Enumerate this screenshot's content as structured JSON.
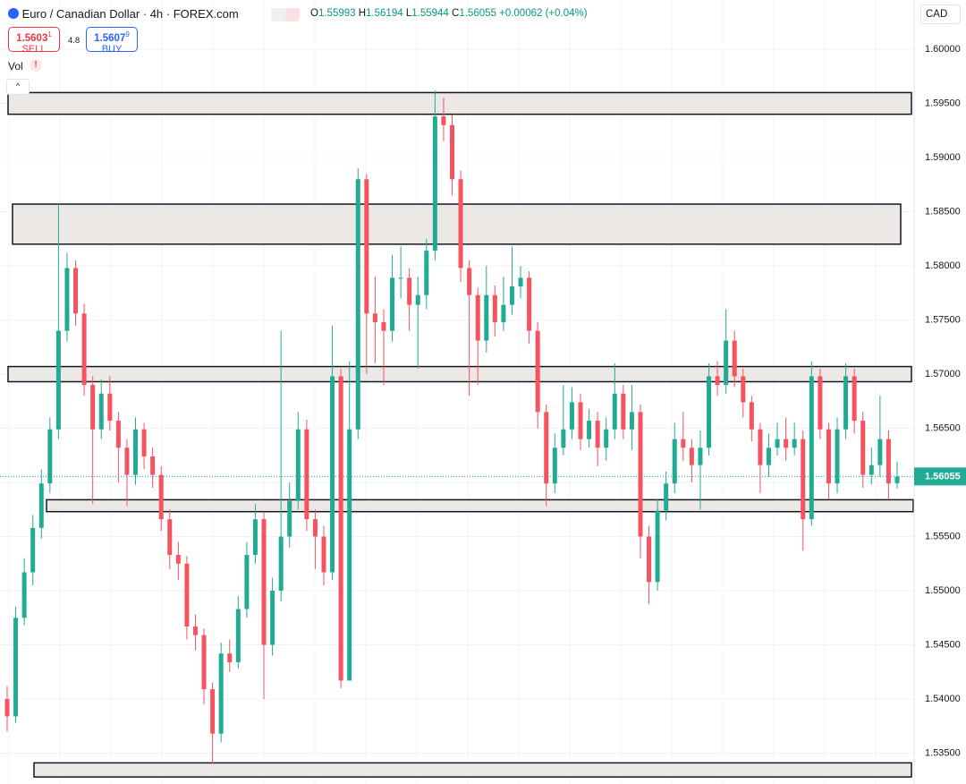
{
  "header": {
    "title": "Euro / Canadian Dollar · 4h · FOREX.com",
    "open_label": "O",
    "open": "1.55993",
    "high_label": "H",
    "high": "1.56194",
    "low_label": "L",
    "low": "1.55944",
    "close_label": "C",
    "close": "1.56055",
    "change": "+0.00062 (+0.04%)",
    "sell_price": "1.5603",
    "sell_sup": "1",
    "sell_label": "SELL",
    "spread": "4.8",
    "buy_price": "1.5607",
    "buy_sup": "9",
    "buy_label": "BUY",
    "volume_label": "Vol",
    "currency": "CAD"
  },
  "chart_data": {
    "type": "candlestick",
    "ylim": [
      1.53215,
      1.60455
    ],
    "yticks": [
      {
        "value": 1.535,
        "label": "1.53500"
      },
      {
        "value": 1.54,
        "label": "1.54000"
      },
      {
        "value": 1.545,
        "label": "1.54500"
      },
      {
        "value": 1.55,
        "label": "1.55000"
      },
      {
        "value": 1.555,
        "label": "1.55500"
      },
      {
        "value": 1.56,
        "label": "1.56000"
      },
      {
        "value": 1.565,
        "label": "1.56500"
      },
      {
        "value": 1.57,
        "label": "1.57000"
      },
      {
        "value": 1.575,
        "label": "1.57500"
      },
      {
        "value": 1.58,
        "label": "1.58000"
      },
      {
        "value": 1.585,
        "label": "1.58500"
      },
      {
        "value": 1.59,
        "label": "1.59000"
      },
      {
        "value": 1.595,
        "label": "1.59500"
      },
      {
        "value": 1.6,
        "label": "1.60000"
      }
    ],
    "grid": true,
    "up_color": "#22ab94",
    "down_color": "#f7525f",
    "zone_color": "#ece8e6",
    "open": [
      1.54,
      1.5384,
      1.5475,
      1.5517,
      1.5558,
      1.5599,
      1.5649,
      1.574,
      1.5798,
      1.5756,
      1.569,
      1.5649,
      1.5682,
      1.5657,
      1.5632,
      1.5607,
      1.5649,
      1.5624,
      1.5607,
      1.5566,
      1.5533,
      1.5525,
      1.5467,
      1.5459,
      1.5409,
      1.5368,
      1.5442,
      1.5434,
      1.5483,
      1.5533,
      1.5566,
      1.545,
      1.55,
      1.555,
      1.5583,
      1.5649,
      1.5566,
      1.555,
      1.5517,
      1.5698,
      1.5417,
      1.5649,
      1.588,
      1.5756,
      1.5748,
      1.574,
      1.5789,
      1.5789,
      1.5764,
      1.5773,
      1.5814,
      1.5938,
      1.593,
      1.588,
      1.5798,
      1.5773,
      1.5731,
      1.5773,
      1.5748,
      1.5764,
      1.5781,
      1.5789,
      1.574,
      1.5665,
      1.5599,
      1.5632,
      1.5649,
      1.5674,
      1.564,
      1.5657,
      1.5632,
      1.5649,
      1.5682,
      1.5649,
      1.5665,
      1.555,
      1.5508,
      1.5574,
      1.5599,
      1.564,
      1.5632,
      1.5616,
      1.5632,
      1.5698,
      1.569,
      1.5731,
      1.5698,
      1.5674,
      1.5649,
      1.5616,
      1.5632,
      1.564,
      1.5632,
      1.564,
      1.5566,
      1.5698,
      1.5649,
      1.5599,
      1.5649,
      1.5698,
      1.5657,
      1.5607,
      1.5616,
      1.564,
      1.55993
    ],
    "high": [
      1.5412,
      1.5485,
      1.553,
      1.557,
      1.5612,
      1.566,
      1.5857,
      1.5812,
      1.5805,
      1.5765,
      1.5698,
      1.5695,
      1.5698,
      1.5665,
      1.564,
      1.566,
      1.5655,
      1.5632,
      1.5615,
      1.5575,
      1.5545,
      1.5532,
      1.5478,
      1.5465,
      1.5415,
      1.5452,
      1.5455,
      1.5495,
      1.5545,
      1.558,
      1.5572,
      1.5512,
      1.574,
      1.56,
      1.5665,
      1.5658,
      1.5575,
      1.556,
      1.5745,
      1.5705,
      1.5712,
      1.589,
      1.5885,
      1.579,
      1.576,
      1.581,
      1.5818,
      1.5798,
      1.579,
      1.5825,
      1.5962,
      1.5955,
      1.594,
      1.5888,
      1.5805,
      1.578,
      1.58,
      1.5782,
      1.579,
      1.5818,
      1.58,
      1.5795,
      1.5748,
      1.5672,
      1.5645,
      1.569,
      1.5688,
      1.5682,
      1.5668,
      1.5665,
      1.566,
      1.571,
      1.569,
      1.569,
      1.5672,
      1.556,
      1.5585,
      1.561,
      1.5655,
      1.5665,
      1.564,
      1.5648,
      1.571,
      1.5712,
      1.576,
      1.574,
      1.5705,
      1.568,
      1.5655,
      1.5645,
      1.5655,
      1.566,
      1.5655,
      1.5648,
      1.5712,
      1.5705,
      1.5655,
      1.566,
      1.571,
      1.5705,
      1.5665,
      1.5632,
      1.568,
      1.5648,
      1.56194
    ],
    "low": [
      1.537,
      1.5378,
      1.5468,
      1.5505,
      1.5548,
      1.559,
      1.564,
      1.573,
      1.5745,
      1.568,
      1.558,
      1.564,
      1.5648,
      1.56,
      1.5578,
      1.5598,
      1.5612,
      1.5595,
      1.5555,
      1.552,
      1.551,
      1.5455,
      1.5445,
      1.5395,
      1.534,
      1.536,
      1.5425,
      1.5428,
      1.5475,
      1.5525,
      1.54,
      1.544,
      1.549,
      1.554,
      1.5575,
      1.5555,
      1.552,
      1.5505,
      1.551,
      1.541,
      1.542,
      1.564,
      1.57,
      1.571,
      1.569,
      1.573,
      1.577,
      1.574,
      1.5705,
      1.576,
      1.5805,
      1.5915,
      1.5865,
      1.5785,
      1.568,
      1.569,
      1.572,
      1.5735,
      1.574,
      1.5755,
      1.577,
      1.5728,
      1.565,
      1.5578,
      1.559,
      1.5625,
      1.564,
      1.563,
      1.5632,
      1.5615,
      1.562,
      1.564,
      1.564,
      1.563,
      1.553,
      1.5488,
      1.55,
      1.5565,
      1.559,
      1.562,
      1.56,
      1.5575,
      1.5625,
      1.568,
      1.5682,
      1.5688,
      1.566,
      1.5638,
      1.559,
      1.5605,
      1.5625,
      1.562,
      1.5625,
      1.5537,
      1.556,
      1.564,
      1.5585,
      1.559,
      1.564,
      1.5645,
      1.5595,
      1.5598,
      1.5605,
      1.5585,
      1.55944
    ],
    "close": [
      1.5384,
      1.5475,
      1.5517,
      1.5558,
      1.5599,
      1.5649,
      1.574,
      1.5798,
      1.5756,
      1.569,
      1.5649,
      1.5682,
      1.5657,
      1.5632,
      1.5607,
      1.5649,
      1.5624,
      1.5607,
      1.5566,
      1.5533,
      1.5525,
      1.5467,
      1.5459,
      1.5409,
      1.5368,
      1.5442,
      1.5434,
      1.5483,
      1.5533,
      1.5566,
      1.545,
      1.55,
      1.555,
      1.5583,
      1.5649,
      1.5566,
      1.555,
      1.5517,
      1.5698,
      1.5417,
      1.5649,
      1.588,
      1.5756,
      1.5748,
      1.574,
      1.5789,
      1.5789,
      1.5764,
      1.5773,
      1.5814,
      1.5938,
      1.593,
      1.588,
      1.5798,
      1.5773,
      1.5731,
      1.5773,
      1.5748,
      1.5764,
      1.5781,
      1.5789,
      1.574,
      1.5665,
      1.5599,
      1.5632,
      1.5649,
      1.5674,
      1.564,
      1.5657,
      1.5632,
      1.5649,
      1.5682,
      1.5649,
      1.5665,
      1.555,
      1.5508,
      1.5574,
      1.5599,
      1.564,
      1.5632,
      1.5616,
      1.5632,
      1.5698,
      1.569,
      1.5731,
      1.5698,
      1.5674,
      1.5649,
      1.5616,
      1.5632,
      1.564,
      1.5632,
      1.564,
      1.5566,
      1.5698,
      1.5649,
      1.5599,
      1.5649,
      1.5698,
      1.5657,
      1.5607,
      1.5616,
      1.564,
      1.5599,
      1.56055
    ],
    "zones": [
      {
        "high": 1.596,
        "low": 1.594
      },
      {
        "high": 1.5857,
        "low": 1.582
      },
      {
        "high": 1.5707,
        "low": 1.5693
      },
      {
        "high": 1.5584,
        "low": 1.5573
      },
      {
        "high": 1.5341,
        "low": 1.5328
      }
    ]
  }
}
